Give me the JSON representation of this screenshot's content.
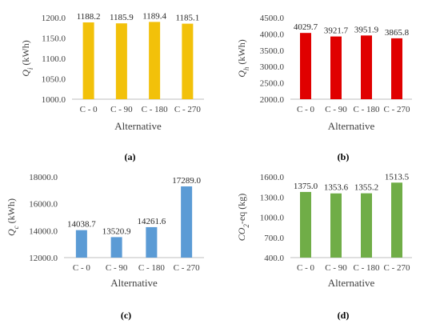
{
  "chart_data": [
    {
      "type": "bar",
      "panel": "(a)",
      "ylabel_main": "Q",
      "ylabel_sub": "i",
      "ylabel_unit": " (kWh)",
      "xlabel": "Alternative",
      "categories": [
        "C - 0",
        "C - 90",
        "C - 180",
        "C - 270"
      ],
      "values": [
        1188.2,
        1185.9,
        1189.4,
        1185.1
      ],
      "value_labels": [
        "1188.2",
        "1185.9",
        "1189.4",
        "1185.1"
      ],
      "ylim": [
        1000,
        1200
      ],
      "yticks": [
        "1000.0",
        "1050.0",
        "1100.0",
        "1150.0",
        "1200.0"
      ],
      "color": "#f2c10a",
      "grid": false
    },
    {
      "type": "bar",
      "panel": "(b)",
      "ylabel_main": "Q",
      "ylabel_sub": "h",
      "ylabel_unit": " (kWh)",
      "xlabel": "Alternative",
      "categories": [
        "C - 0",
        "C - 90",
        "C - 180",
        "C - 270"
      ],
      "values": [
        4029.7,
        3921.7,
        3951.9,
        3865.8
      ],
      "value_labels": [
        "4029.7",
        "3921.7",
        "3951.9",
        "3865.8"
      ],
      "ylim": [
        2000,
        4500
      ],
      "yticks": [
        "2000.0",
        "2500.0",
        "3000.0",
        "3500.0",
        "4000.0",
        "4500.0"
      ],
      "color": "#e00000",
      "grid": false
    },
    {
      "type": "bar",
      "panel": "(c)",
      "ylabel_main": "Q",
      "ylabel_sub": "c",
      "ylabel_unit": " (kWh)",
      "xlabel": "Alternative",
      "categories": [
        "C - 0",
        "C - 90",
        "C - 180",
        "C - 270"
      ],
      "values": [
        14038.7,
        13520.9,
        14261.6,
        17289.0
      ],
      "value_labels": [
        "14038.7",
        "13520.9",
        "14261.6",
        "17289.0"
      ],
      "ylim": [
        12000,
        18000
      ],
      "yticks": [
        "12000.0",
        "14000.0",
        "16000.0",
        "18000.0"
      ],
      "color": "#5b9bd5",
      "grid": false
    },
    {
      "type": "bar",
      "panel": "(d)",
      "ylabel_main": "CO",
      "ylabel_sub": "2",
      "ylabel_unit": "-eq (kg)",
      "xlabel": "Alternative",
      "categories": [
        "C - 0",
        "C - 90",
        "C - 180",
        "C - 270"
      ],
      "values": [
        1375.0,
        1353.6,
        1355.2,
        1513.5
      ],
      "value_labels": [
        "1375.0",
        "1353.6",
        "1355.2",
        "1513.5"
      ],
      "ylim": [
        400,
        1600
      ],
      "yticks": [
        "400.0",
        "700.0",
        "1000.0",
        "1300.0",
        "1600.0"
      ],
      "color": "#70ad47",
      "grid": false
    }
  ]
}
